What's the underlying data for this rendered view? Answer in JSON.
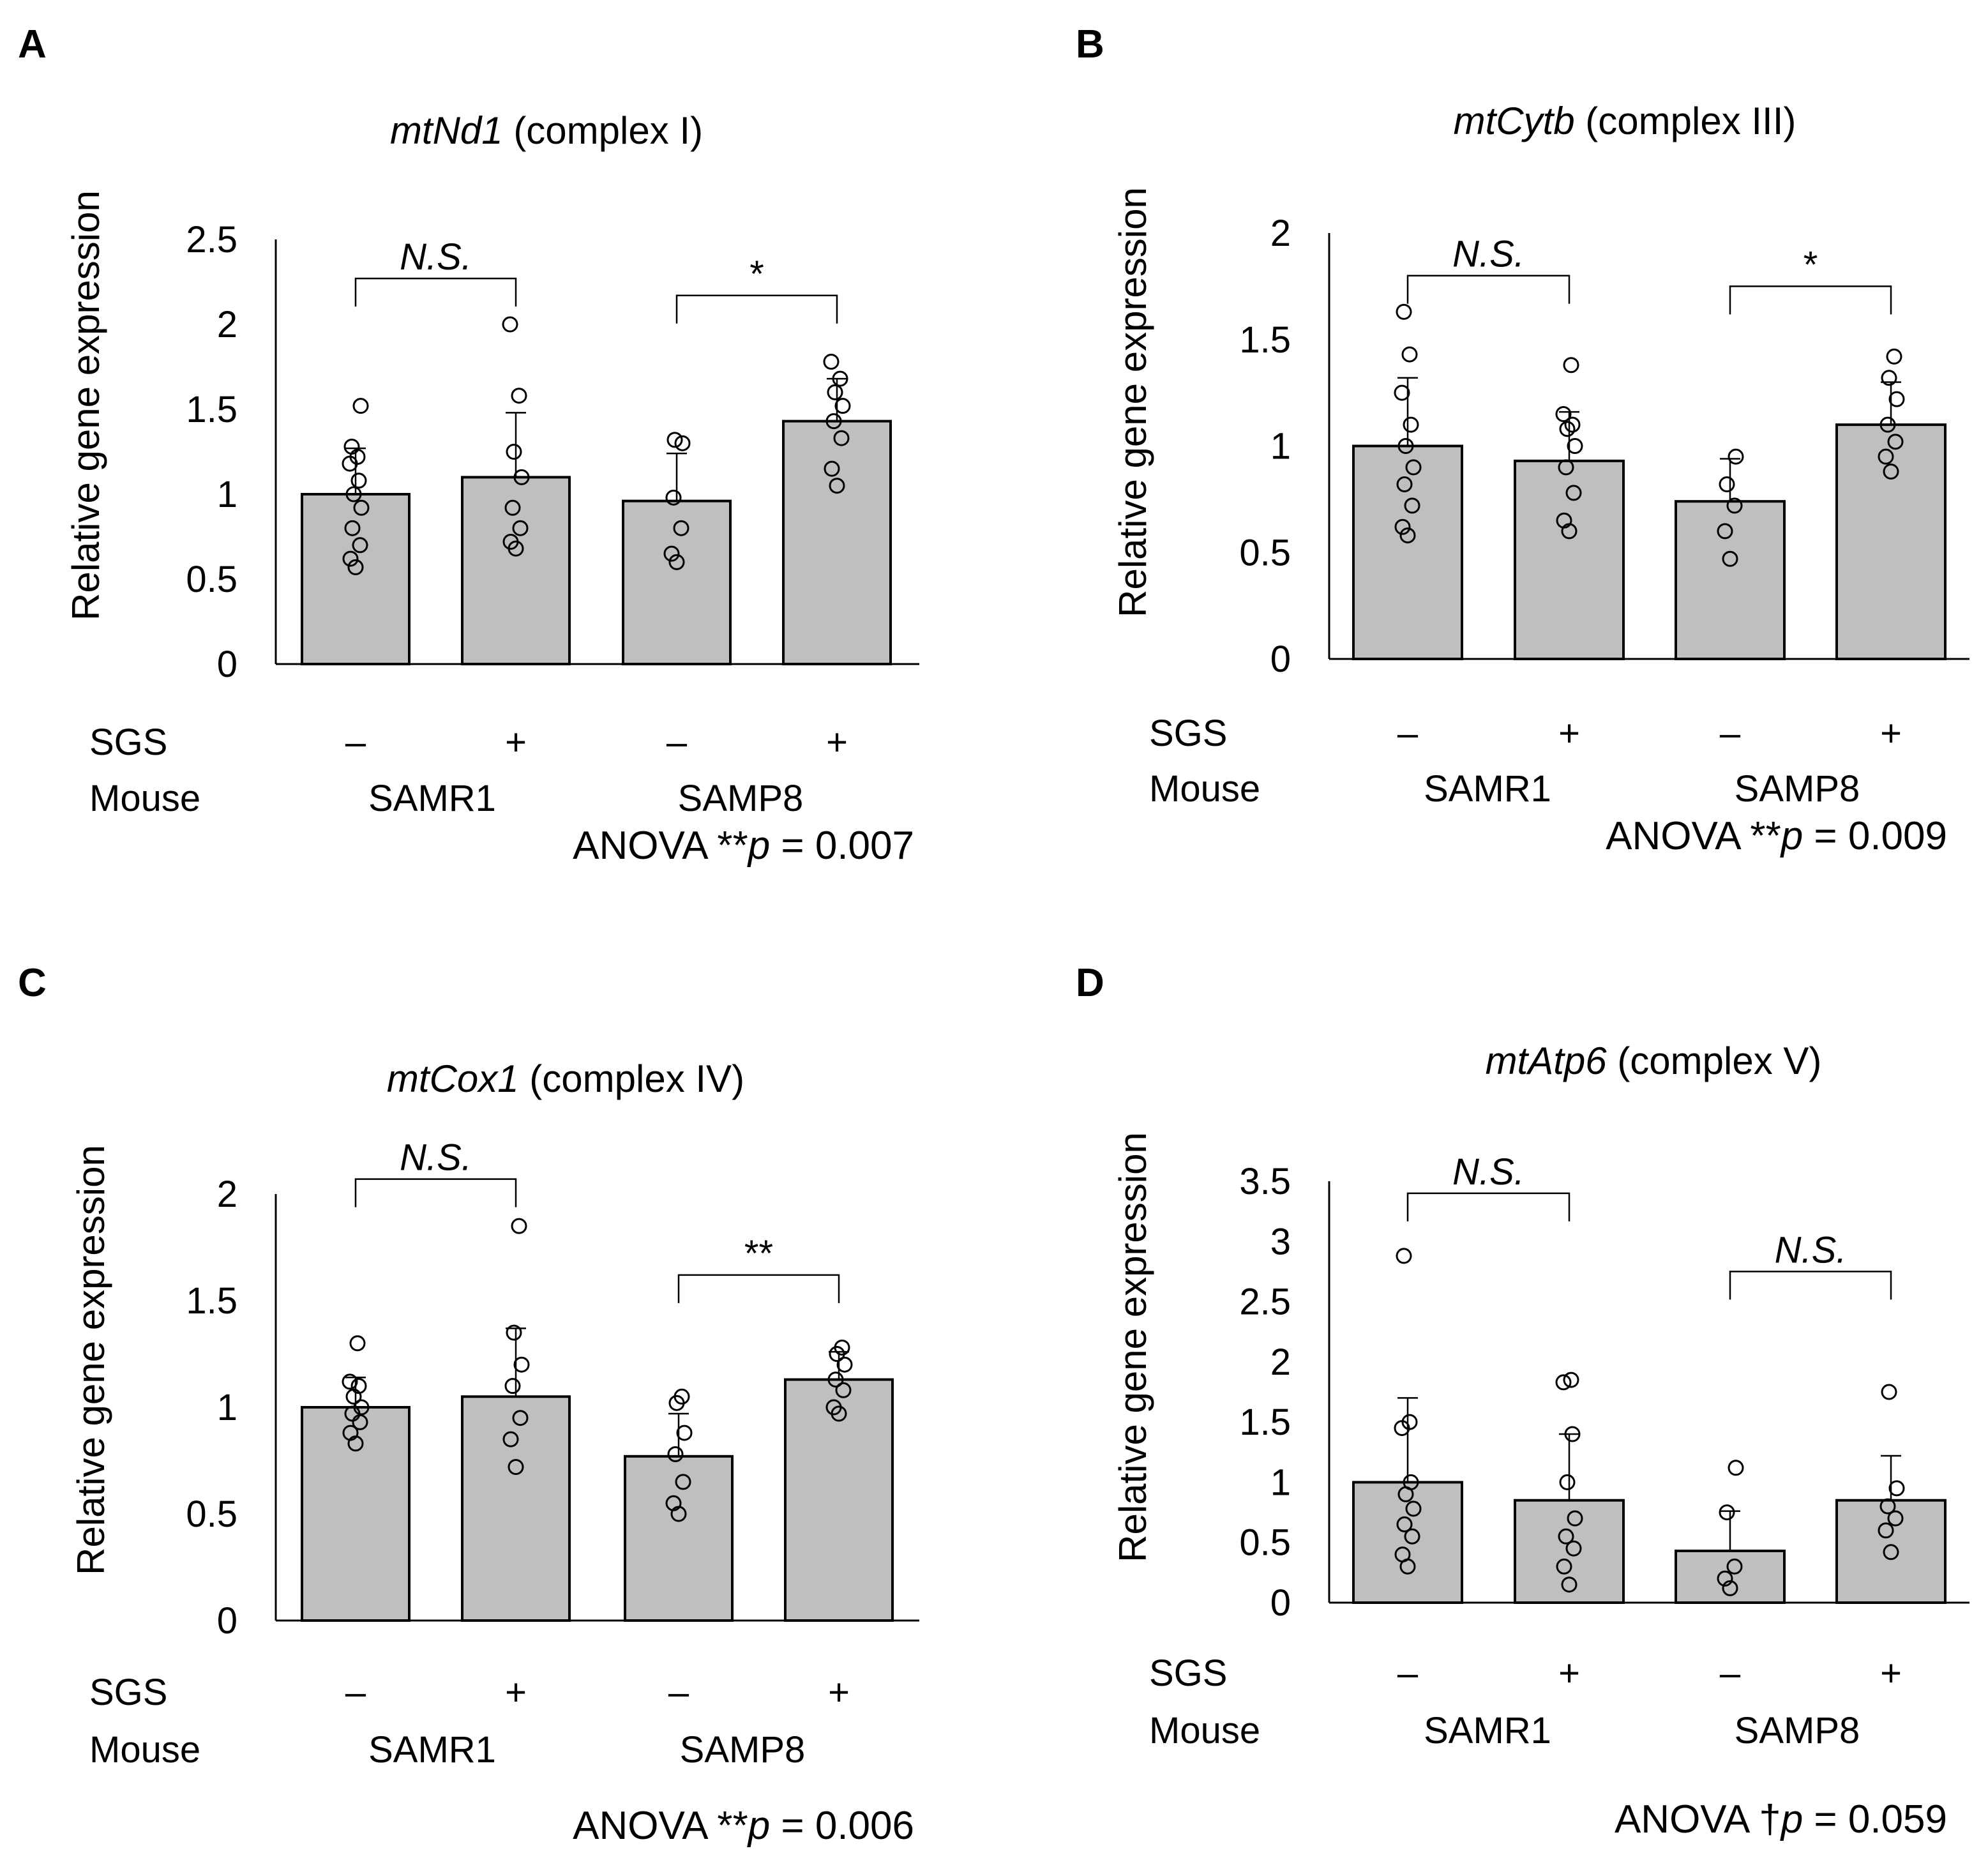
{
  "chart_data": [
    {
      "type": "bar",
      "panel": "A",
      "title_gene": "mtNd1",
      "title_rest": " (complex I)",
      "ylabel": "Relative gene expression",
      "ylim": [
        0,
        2.5
      ],
      "yticks": [
        "0",
        "0.5",
        "1",
        "1.5",
        "2",
        "2.5"
      ],
      "ytick_values": [
        0,
        0.5,
        1,
        1.5,
        2,
        2.5
      ],
      "row_labels": [
        "SGS",
        "Mouse"
      ],
      "sgs": [
        "–",
        "+",
        "–",
        "+"
      ],
      "groups": [
        "SAMR1",
        "SAMP8"
      ],
      "means": [
        1.0,
        1.1,
        0.96,
        1.43
      ],
      "errors": [
        0.27,
        0.38,
        0.28,
        0.25
      ],
      "points": [
        [
          0.57,
          0.62,
          0.7,
          0.8,
          0.92,
          1.0,
          1.08,
          1.18,
          1.22,
          1.28,
          1.52
        ],
        [
          0.68,
          0.72,
          0.8,
          0.92,
          1.1,
          1.25,
          1.58,
          2.0
        ],
        [
          0.6,
          0.65,
          0.8,
          0.98,
          1.3,
          1.32
        ],
        [
          1.05,
          1.15,
          1.33,
          1.43,
          1.52,
          1.6,
          1.68,
          1.78
        ]
      ],
      "comparisons": [
        {
          "bars": [
            0,
            1
          ],
          "label": "N.S.",
          "italic": true,
          "level": 2.27
        },
        {
          "bars": [
            2,
            3
          ],
          "label": "*",
          "italic": false,
          "level": 2.17
        }
      ],
      "anova_prefix": "ANOVA **",
      "anova_p": "p",
      "anova_value": " = 0.007"
    },
    {
      "type": "bar",
      "panel": "B",
      "title_gene": "mtCytb",
      "title_rest": " (complex III)",
      "ylabel": "Relative gene expression",
      "ylim": [
        0,
        2
      ],
      "yticks": [
        "0",
        "0.5",
        "1",
        "1.5",
        "2"
      ],
      "ytick_values": [
        0,
        0.5,
        1,
        1.5,
        2
      ],
      "row_labels": [
        "SGS",
        "Mouse"
      ],
      "sgs": [
        "–",
        "+",
        "–",
        "+"
      ],
      "groups": [
        "SAMR1",
        "SAMP8"
      ],
      "means": [
        1.0,
        0.93,
        0.74,
        1.1
      ],
      "errors": [
        0.32,
        0.23,
        0.2,
        0.2
      ],
      "points": [
        [
          0.58,
          0.62,
          0.72,
          0.82,
          0.9,
          1.0,
          1.1,
          1.25,
          1.43,
          1.63
        ],
        [
          0.6,
          0.65,
          0.78,
          0.9,
          1.0,
          1.08,
          1.1,
          1.15,
          1.38
        ],
        [
          0.47,
          0.6,
          0.72,
          0.82,
          0.95
        ],
        [
          0.88,
          0.95,
          1.02,
          1.1,
          1.22,
          1.32,
          1.42
        ]
      ],
      "comparisons": [
        {
          "bars": [
            0,
            1
          ],
          "label": "N.S.",
          "italic": true,
          "level": 1.8
        },
        {
          "bars": [
            2,
            3
          ],
          "label": "*",
          "italic": false,
          "level": 1.75
        }
      ],
      "anova_prefix": "ANOVA **",
      "anova_p": "p",
      "anova_value": " = 0.009"
    },
    {
      "type": "bar",
      "panel": "C",
      "title_gene": "mtCox1",
      "title_rest": " (complex IV)",
      "ylabel": "Relative gene expression",
      "ylim": [
        0,
        2
      ],
      "yticks": [
        "0",
        "0.5",
        "1",
        "1.5",
        "2"
      ],
      "ytick_values": [
        0,
        0.5,
        1,
        1.5,
        2
      ],
      "row_labels": [
        "SGS",
        "Mouse"
      ],
      "sgs": [
        "–",
        "+",
        "–",
        "+"
      ],
      "groups": [
        "SAMR1",
        "SAMP8"
      ],
      "means": [
        1.0,
        1.05,
        0.77,
        1.13
      ],
      "errors": [
        0.14,
        0.32,
        0.2,
        0.13
      ],
      "points": [
        [
          0.83,
          0.88,
          0.93,
          0.97,
          1.0,
          1.05,
          1.1,
          1.12,
          1.3
        ],
        [
          0.72,
          0.85,
          0.95,
          1.1,
          1.2,
          1.35,
          1.85
        ],
        [
          0.5,
          0.55,
          0.65,
          0.78,
          0.88,
          1.02,
          1.05
        ],
        [
          0.97,
          1.0,
          1.08,
          1.13,
          1.2,
          1.25,
          1.28
        ]
      ],
      "comparisons": [
        {
          "bars": [
            0,
            1
          ],
          "label": "N.S.",
          "italic": true,
          "level": 2.07
        },
        {
          "bars": [
            2,
            3
          ],
          "label": "**",
          "italic": false,
          "level": 1.62
        }
      ],
      "anova_prefix": "ANOVA **",
      "anova_p": "p",
      "anova_value": " = 0.006"
    },
    {
      "type": "bar",
      "panel": "D",
      "title_gene": "mtAtp6",
      "title_rest": " (complex V)",
      "ylabel": "Relative gene expression",
      "ylim": [
        0,
        3.5
      ],
      "yticks": [
        "0",
        "0.5",
        "1",
        "1.5",
        "2",
        "2.5",
        "3",
        "3.5"
      ],
      "ytick_values": [
        0,
        0.5,
        1,
        1.5,
        2,
        2.5,
        3,
        3.5
      ],
      "row_labels": [
        "SGS",
        "Mouse"
      ],
      "sgs": [
        "–",
        "+",
        "–",
        "+"
      ],
      "groups": [
        "SAMR1",
        "SAMP8"
      ],
      "means": [
        1.0,
        0.85,
        0.43,
        0.85
      ],
      "errors": [
        0.7,
        0.55,
        0.33,
        0.37
      ],
      "points": [
        [
          0.3,
          0.4,
          0.55,
          0.65,
          0.78,
          0.9,
          1.0,
          1.45,
          1.5,
          2.88
        ],
        [
          0.15,
          0.3,
          0.45,
          0.55,
          0.7,
          1.0,
          1.4,
          1.83,
          1.85
        ],
        [
          0.12,
          0.2,
          0.3,
          0.75,
          1.12
        ],
        [
          0.42,
          0.6,
          0.7,
          0.8,
          0.95,
          1.75
        ]
      ],
      "comparisons": [
        {
          "bars": [
            0,
            1
          ],
          "label": "N.S.",
          "italic": true,
          "level": 3.4
        },
        {
          "bars": [
            2,
            3
          ],
          "label": "N.S.",
          "italic": true,
          "level": 2.75
        }
      ],
      "anova_prefix": "ANOVA †",
      "anova_p": "p",
      "anova_value": " = 0.059"
    }
  ]
}
